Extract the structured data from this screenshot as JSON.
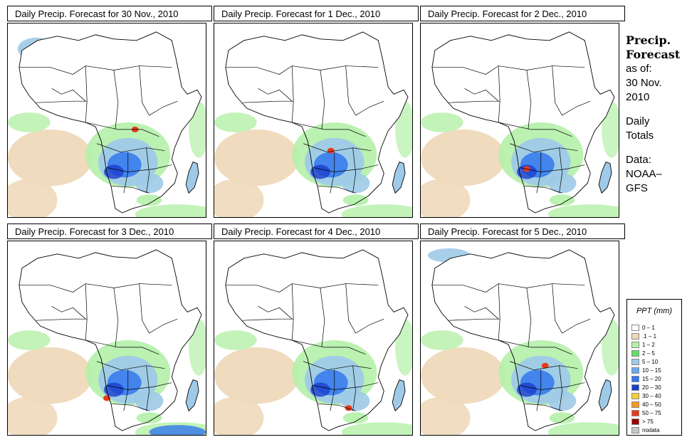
{
  "panels": [
    {
      "title": "Daily Precip. Forecast for  30 Nov., 2010",
      "intensity": "high"
    },
    {
      "title": "Daily Precip. Forecast for  1 Dec., 2010",
      "intensity": "medium"
    },
    {
      "title": "Daily Precip. Forecast for  2 Dec., 2010",
      "intensity": "medium"
    },
    {
      "title": "Daily Precip. Forecast for  3 Dec., 2010",
      "intensity": "medium"
    },
    {
      "title": "Daily Precip. Forecast for  4 Dec., 2010",
      "intensity": "medium"
    },
    {
      "title": "Daily Precip. Forecast for  5 Dec., 2010",
      "intensity": "medium"
    }
  ],
  "side": {
    "line1": "Precip.",
    "line2": "Forecast",
    "line3": "as of:",
    "line4": "30 Nov.",
    "line5": "2010",
    "line6": "Daily",
    "line7": "Totals",
    "line8": "Data:",
    "line9": "NOAA–",
    "line10": "GFS"
  },
  "legend": {
    "title": "PPT (mm)",
    "items": [
      {
        "label": "0 – 1",
        "color": "#ffffff"
      },
      {
        "label": ".1 – 1",
        "color": "#efd9bb"
      },
      {
        "label": "1 – 2",
        "color": "#b4f0a8"
      },
      {
        "label": "2 – 5",
        "color": "#66dd66"
      },
      {
        "label": "5 – 10",
        "color": "#9ecae8"
      },
      {
        "label": "10 – 15",
        "color": "#6aaaf0"
      },
      {
        "label": "15 – 20",
        "color": "#3377ee"
      },
      {
        "label": "20 – 30",
        "color": "#1a3fcc"
      },
      {
        "label": "30 – 40",
        "color": "#f5d033"
      },
      {
        "label": "40 – 50",
        "color": "#f59a1a"
      },
      {
        "label": "50 – 75",
        "color": "#e83a1a"
      },
      {
        "label": "> 75",
        "color": "#990000"
      },
      {
        "label": "nodata",
        "color": "#c8c8c8"
      }
    ]
  },
  "colors": {
    "sand": "#efd9bb",
    "light_green": "#b4f0a8",
    "green": "#66dd66",
    "light_blue": "#9ecae8",
    "blue": "#3377ee",
    "dark_blue": "#1a3fcc",
    "red": "#e83a1a"
  }
}
